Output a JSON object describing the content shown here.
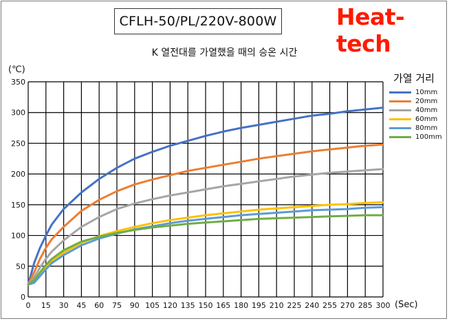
{
  "header": {
    "model": "CFLH-50/PL/220V-800W",
    "brand": "Heat-tech"
  },
  "chart_data": {
    "type": "line",
    "title": "K 열전대를 가열했을 때의 승온 시간",
    "ylabel": "(℃)",
    "xlabel": "(Sec)",
    "xlim": [
      0,
      300
    ],
    "ylim": [
      0,
      350
    ],
    "xticks": [
      0,
      15,
      30,
      45,
      60,
      75,
      90,
      105,
      120,
      135,
      150,
      165,
      180,
      195,
      210,
      225,
      240,
      255,
      270,
      285,
      300
    ],
    "yticks": [
      0,
      50,
      100,
      150,
      200,
      250,
      300,
      350
    ],
    "grid": true,
    "legend_title": "가열 거리",
    "legend_position": "right",
    "x": [
      0,
      5,
      10,
      15,
      20,
      30,
      45,
      60,
      75,
      90,
      105,
      120,
      135,
      150,
      165,
      180,
      195,
      210,
      225,
      240,
      255,
      270,
      285,
      300
    ],
    "series": [
      {
        "name": "10mm",
        "color": "#4472c4",
        "values": [
          20,
          55,
          80,
          100,
          118,
          143,
          170,
          192,
          210,
          225,
          236,
          246,
          254,
          262,
          269,
          275,
          280,
          285,
          290,
          295,
          298,
          302,
          305,
          308
        ]
      },
      {
        "name": "20mm",
        "color": "#ed7d31",
        "values": [
          20,
          40,
          62,
          80,
          94,
          114,
          140,
          158,
          172,
          183,
          191,
          198,
          205,
          210,
          215,
          220,
          225,
          229,
          233,
          237,
          240,
          243,
          246,
          248
        ]
      },
      {
        "name": "40mm",
        "color": "#a5a5a5",
        "values": [
          20,
          32,
          48,
          62,
          74,
          92,
          114,
          130,
          143,
          152,
          159,
          165,
          170,
          175,
          180,
          184,
          188,
          192,
          196,
          199,
          202,
          204,
          206,
          208
        ]
      },
      {
        "name": "60mm",
        "color": "#ffc000",
        "values": [
          20,
          24,
          36,
          48,
          58,
          72,
          88,
          99,
          107,
          114,
          120,
          125,
          129,
          133,
          136,
          139,
          142,
          144,
          146,
          148,
          150,
          151,
          153,
          154
        ]
      },
      {
        "name": "80mm",
        "color": "#5b9bd5",
        "values": [
          20,
          23,
          34,
          45,
          55,
          68,
          84,
          95,
          103,
          110,
          115,
          120,
          124,
          127,
          130,
          133,
          135,
          137,
          139,
          141,
          142,
          143,
          145,
          146
        ]
      },
      {
        "name": "100mm",
        "color": "#70ad47",
        "values": [
          20,
          27,
          40,
          52,
          62,
          76,
          90,
          98,
          104,
          109,
          113,
          116,
          119,
          121,
          123,
          125,
          127,
          128,
          129,
          130,
          131,
          132,
          133,
          133
        ]
      }
    ]
  }
}
